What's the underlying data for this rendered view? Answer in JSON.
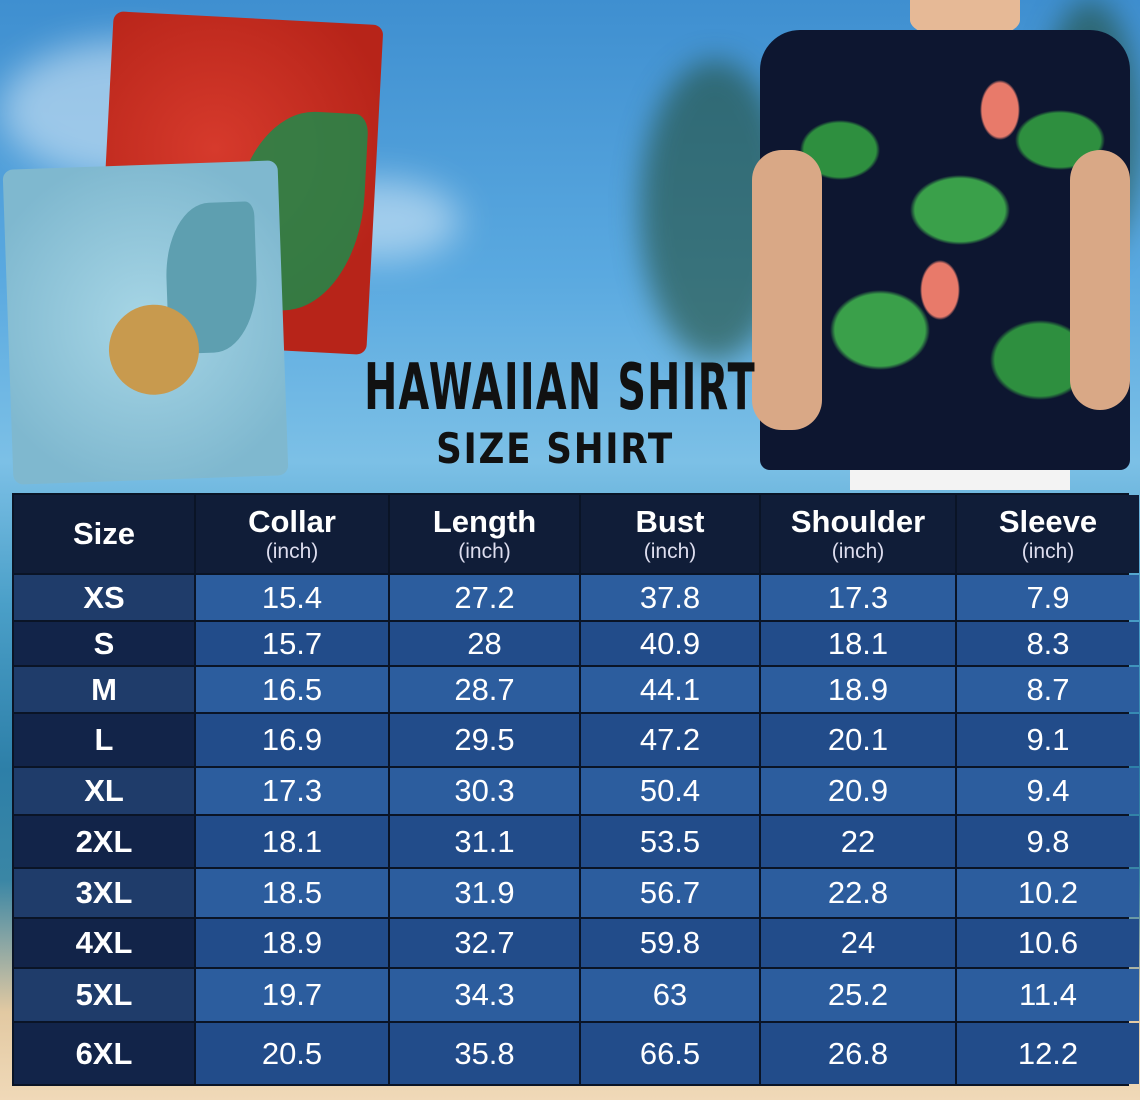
{
  "title": "HAWAIIAN SHIRT",
  "subtitle": "SIZE SHIRT",
  "colors": {
    "header": "#101d38",
    "row_light": "#2c5d9e",
    "row_dark": "#224c8a",
    "size_col": "#122449"
  },
  "table": {
    "columns": [
      {
        "name": "Size",
        "unit": ""
      },
      {
        "name": "Collar",
        "unit": "(inch)"
      },
      {
        "name": "Length",
        "unit": "(inch)"
      },
      {
        "name": "Bust",
        "unit": "(inch)"
      },
      {
        "name": "Shoulder",
        "unit": "(inch)"
      },
      {
        "name": "Sleeve",
        "unit": "(inch)"
      }
    ],
    "rows": [
      [
        "XS",
        "15.4",
        "27.2",
        "37.8",
        "17.3",
        "7.9"
      ],
      [
        "S",
        "15.7",
        "28",
        "40.9",
        "18.1",
        "8.3"
      ],
      [
        "M",
        "16.5",
        "28.7",
        "44.1",
        "18.9",
        "8.7"
      ],
      [
        "L",
        "16.9",
        "29.5",
        "47.2",
        "20.1",
        "9.1"
      ],
      [
        "XL",
        "17.3",
        "30.3",
        "50.4",
        "20.9",
        "9.4"
      ],
      [
        "2XL",
        "18.1",
        "31.1",
        "53.5",
        "22",
        "9.8"
      ],
      [
        "3XL",
        "18.5",
        "31.9",
        "56.7",
        "22.8",
        "10.2"
      ],
      [
        "4XL",
        "18.9",
        "32.7",
        "59.8",
        "24",
        "10.6"
      ],
      [
        "5XL",
        "19.7",
        "34.3",
        "63",
        "25.2",
        "11.4"
      ],
      [
        "6XL",
        "20.5",
        "35.8",
        "66.5",
        "26.8",
        "12.2"
      ]
    ]
  }
}
